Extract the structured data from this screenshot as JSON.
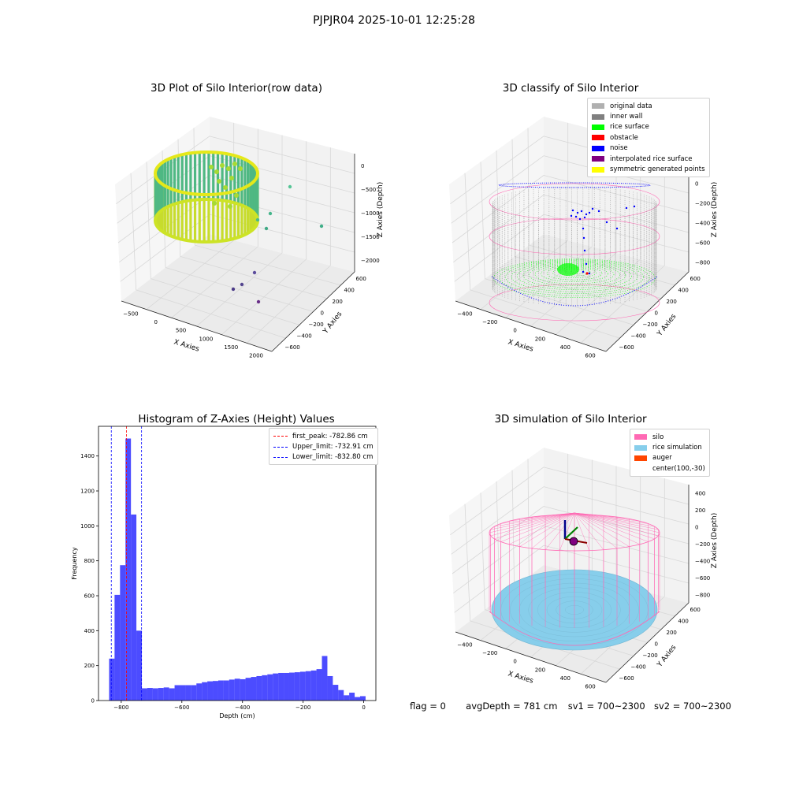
{
  "figure": {
    "suptitle": "PJPJR04 2025-10-01 12:25:28"
  },
  "panels": [
    {
      "title": "3D Plot of Silo Interior(row data)",
      "xlabel": "X Axies",
      "ylabel": "Y Axies",
      "zlabel": "Z Axies (Depth)",
      "x_ticks": [
        "−500",
        "0",
        "500",
        "1000",
        "1500",
        "2000"
      ],
      "y_ticks": [
        "−600",
        "−400",
        "−200",
        "0",
        "200",
        "400",
        "600"
      ],
      "z_ticks": [
        "−2000",
        "−1500",
        "−1000",
        "−500",
        "0"
      ]
    },
    {
      "title": "3D classify of Silo Interior",
      "xlabel": "X Axies",
      "ylabel": "Y Axies",
      "zlabel": "Z Axies (Depth)",
      "x_ticks": [
        "−400",
        "−200",
        "0",
        "200",
        "400",
        "600"
      ],
      "y_ticks": [
        "−600",
        "−400",
        "−200",
        "0",
        "200",
        "400",
        "600"
      ],
      "z_ticks": [
        "−800",
        "−600",
        "−400",
        "−200",
        "0",
        "200"
      ],
      "legend": [
        {
          "label": "original data",
          "color": "#b0b0b0"
        },
        {
          "label": "inner wall",
          "color": "#808080"
        },
        {
          "label": "rice surface",
          "color": "#00ff00"
        },
        {
          "label": "obstacle",
          "color": "#ff0000"
        },
        {
          "label": "noise",
          "color": "#0000ff"
        },
        {
          "label": "interpolated rice surface",
          "color": "#800080"
        },
        {
          "label": "symmetric generated points",
          "color": "#ffff00"
        }
      ]
    },
    {
      "title": "Histogram of Z-Axies (Height) Values",
      "xlabel": "Depth (cm)",
      "ylabel": "Frequency",
      "legend": [
        {
          "label": "first_peak: -782.86 cm",
          "color": "#ff0000"
        },
        {
          "label": "Upper_limit: -732.91 cm",
          "color": "#0000ff"
        },
        {
          "label": "Lower_limit: -832.80 cm",
          "color": "#0000ff"
        }
      ]
    },
    {
      "title": "3D simulation of Silo Interior",
      "xlabel": "X Axies",
      "ylabel": "Y Axies",
      "zlabel": "Z Axies (Depth)",
      "x_ticks": [
        "−400",
        "−200",
        "0",
        "200",
        "400",
        "600"
      ],
      "y_ticks": [
        "−600",
        "−400",
        "−200",
        "0",
        "200",
        "400",
        "600"
      ],
      "z_ticks": [
        "−800",
        "−600",
        "−400",
        "−200",
        "0",
        "200",
        "400"
      ],
      "legend": [
        {
          "label": "silo",
          "color": "#ff69b4"
        },
        {
          "label": "rice simulation",
          "color": "#87ceeb"
        },
        {
          "label": "auger",
          "color": "#ff4500"
        },
        {
          "label": "center(100,-30)",
          "color": "#ffffff"
        }
      ]
    }
  ],
  "chart_data": [
    {
      "type": "scatter",
      "title": "3D Plot of Silo Interior(row data)",
      "xlabel": "X Axies",
      "ylabel": "Y Axies",
      "zlabel": "Z Axies (Depth)",
      "xlim": [
        -700,
        2000
      ],
      "ylim": [
        -700,
        700
      ],
      "zlim": [
        -2200,
        100
      ],
      "colormap": "viridis"
    },
    {
      "type": "scatter",
      "title": "3D classify of Silo Interior",
      "xlabel": "X Axies",
      "ylabel": "Y Axies",
      "zlabel": "Z Axies (Depth)",
      "xlim": [
        -500,
        700
      ],
      "ylim": [
        -700,
        700
      ],
      "zlim": [
        -900,
        300
      ]
    },
    {
      "type": "bar",
      "title": "Histogram of Z-Axies (Height) Values",
      "xlabel": "Depth (cm)",
      "ylabel": "Frequency",
      "xlim": [
        -875,
        40
      ],
      "ylim": [
        0,
        1570
      ],
      "x_ticks": [
        -800,
        -600,
        -400,
        -200,
        0
      ],
      "y_ticks": [
        0,
        200,
        400,
        600,
        800,
        1000,
        1200,
        1400
      ],
      "bar_color": "#0000ff",
      "bin_edges": [
        -840,
        -822,
        -804,
        -786,
        -768,
        -750,
        -732,
        -714,
        -696,
        -678,
        -660,
        -642,
        -624,
        -606,
        -588,
        -570,
        -552,
        -534,
        -516,
        -498,
        -480,
        -462,
        -444,
        -426,
        -408,
        -390,
        -372,
        -354,
        -336,
        -318,
        -300,
        -282,
        -264,
        -246,
        -228,
        -210,
        -192,
        -174,
        -156,
        -138,
        -120,
        -102,
        -84,
        -66,
        -48,
        -30,
        -12,
        6
      ],
      "values": [
        240,
        605,
        775,
        1500,
        1065,
        400,
        70,
        72,
        70,
        72,
        75,
        70,
        88,
        88,
        88,
        88,
        98,
        105,
        110,
        112,
        115,
        115,
        120,
        125,
        122,
        130,
        135,
        140,
        145,
        150,
        155,
        158,
        158,
        160,
        162,
        165,
        168,
        172,
        180,
        255,
        140,
        90,
        60,
        30,
        45,
        20,
        25
      ],
      "lines": [
        {
          "label": "first_peak: -782.86 cm",
          "x": -782.86,
          "color": "#ff0000"
        },
        {
          "label": "Upper_limit: -732.91 cm",
          "x": -732.91,
          "color": "#0000ff"
        },
        {
          "label": "Lower_limit: -832.80 cm",
          "x": -832.8,
          "color": "#0000ff"
        }
      ],
      "legend_position": "upper right"
    },
    {
      "type": "scatter",
      "title": "3D simulation of Silo Interior",
      "xlabel": "X Axies",
      "ylabel": "Y Axies",
      "zlabel": "Z Axies (Depth)",
      "xlim": [
        -500,
        700
      ],
      "ylim": [
        -700,
        700
      ],
      "zlim": [
        -900,
        500
      ],
      "center": [
        100,
        -30
      ]
    }
  ],
  "footer": {
    "flag": "flag = 0",
    "avg_depth": "avgDepth = 781 cm",
    "sv1": "sv1 = 700~2300",
    "sv2": "sv2 = 700~2300"
  }
}
